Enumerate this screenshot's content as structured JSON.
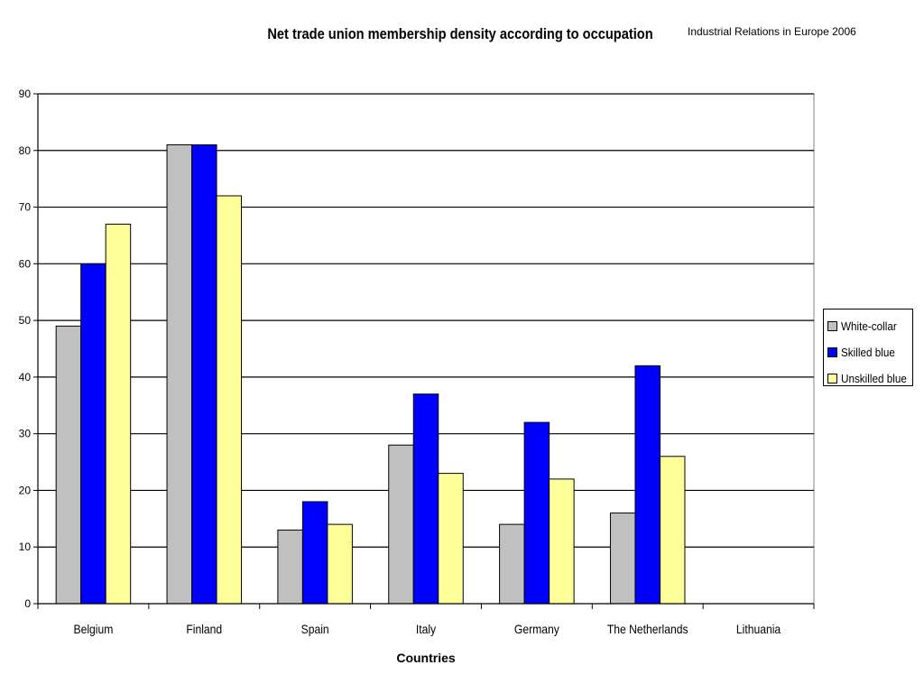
{
  "header": {
    "title": "Net trade union membership density according to occupation",
    "source": "Industrial Relations in Europe 2006"
  },
  "chart_data": {
    "type": "bar",
    "title": "Net trade union membership density according to occupation",
    "xlabel": "Countries",
    "ylabel": "",
    "ylim": [
      0,
      90
    ],
    "yticks": [
      0,
      10,
      20,
      30,
      40,
      50,
      60,
      70,
      80,
      90
    ],
    "grid": true,
    "legend_position": "right",
    "categories": [
      "Belgium",
      "Finland",
      "Spain",
      "Italy",
      "Germany",
      "The Netherlands",
      "Lithuania"
    ],
    "series": [
      {
        "name": "White-collar",
        "color": "#c0c0c0",
        "values": [
          49,
          81,
          13,
          28,
          14,
          16,
          null
        ]
      },
      {
        "name": "Skilled blue",
        "color": "#0000ff",
        "values": [
          60,
          81,
          18,
          37,
          32,
          42,
          null
        ]
      },
      {
        "name": "Unskilled blue",
        "color": "#ffff99",
        "values": [
          67,
          72,
          14,
          23,
          22,
          26,
          null
        ]
      }
    ]
  }
}
